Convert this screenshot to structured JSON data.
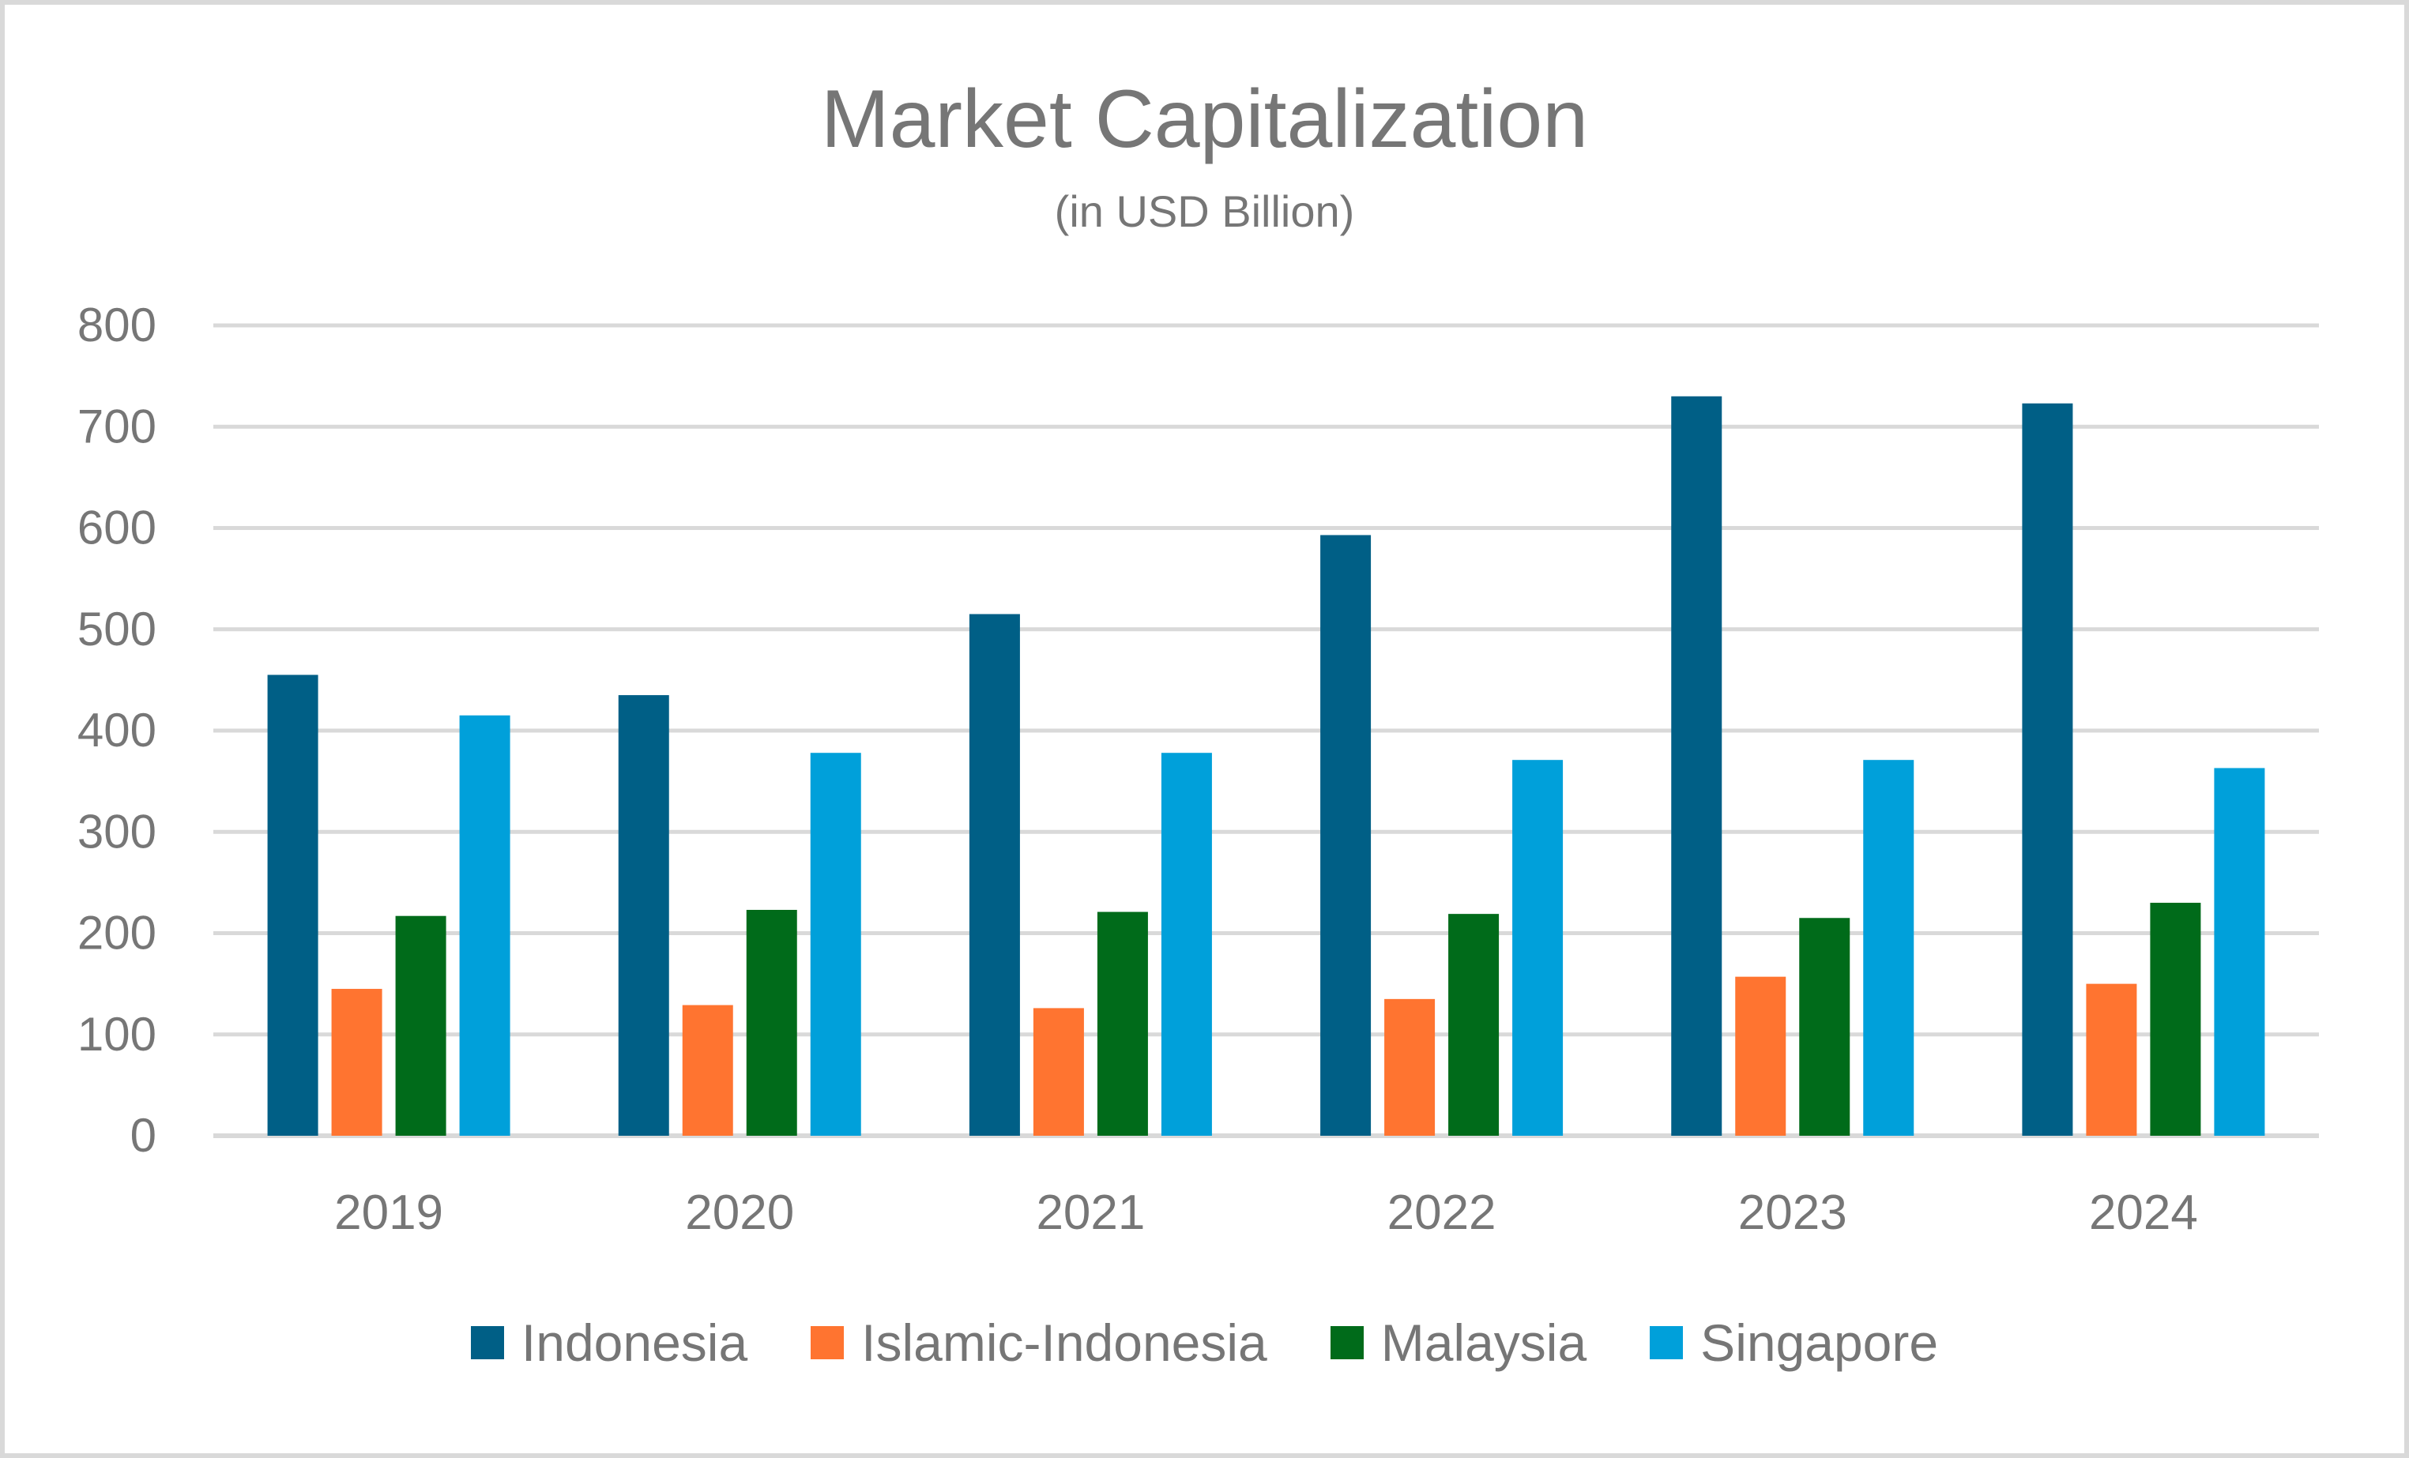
{
  "chart_data": {
    "type": "bar",
    "title": "Market Capitalization",
    "subtitle": "(in USD Billion)",
    "xlabel": "",
    "ylabel": "",
    "categories": [
      "2019",
      "2020",
      "2021",
      "2022",
      "2023",
      "2024"
    ],
    "ylim": [
      0,
      800
    ],
    "yticks": [
      "0",
      "100",
      "200",
      "300",
      "400",
      "500",
      "600",
      "700",
      "800"
    ],
    "grid": true,
    "legend_position": "bottom",
    "series": [
      {
        "name": "Indonesia",
        "color": "#005f86",
        "values": [
          455,
          435,
          515,
          593,
          730,
          723
        ]
      },
      {
        "name": "Islamic-Indonesia",
        "color": "#ff7430",
        "values": [
          145,
          129,
          126,
          135,
          157,
          150
        ]
      },
      {
        "name": "Malaysia",
        "color": "#006b1a",
        "values": [
          217,
          223,
          221,
          219,
          215,
          230
        ]
      },
      {
        "name": "Singapore",
        "color": "#00a0da",
        "values": [
          415,
          378,
          378,
          371,
          371,
          363
        ]
      }
    ]
  }
}
